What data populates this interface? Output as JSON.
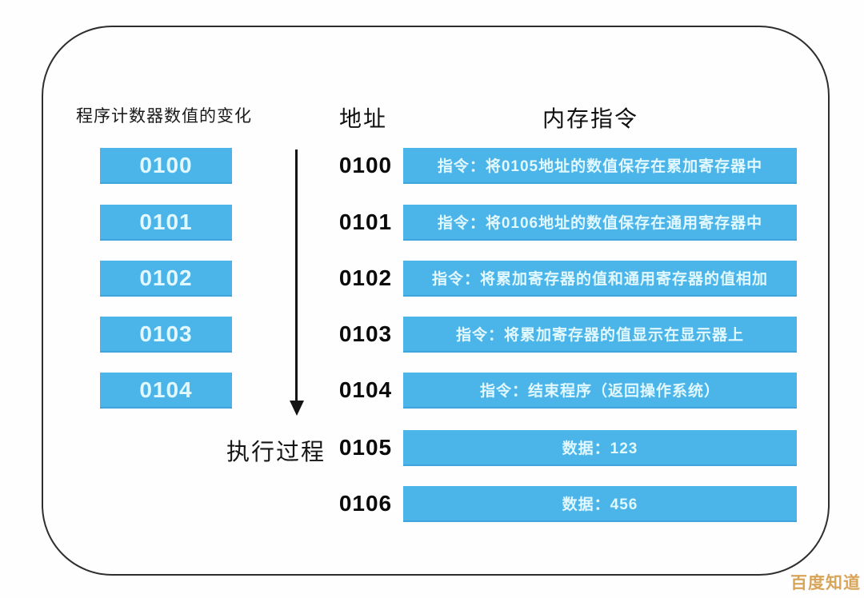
{
  "diagram": {
    "left_header": "程序计数器数值的变化",
    "address_header": "地址",
    "memory_header": "内存指令",
    "execution_label": "执行过程",
    "pc_boxes": [
      "0100",
      "0101",
      "0102",
      "0103",
      "0104"
    ],
    "memory_rows": [
      {
        "address": "0100",
        "content": "指令：将0105地址的数值保存在累加寄存器中"
      },
      {
        "address": "0101",
        "content": "指令：将0106地址的数值保存在通用寄存器中"
      },
      {
        "address": "0102",
        "content": "指令：将累加寄存器的值和通用寄存器的值相加"
      },
      {
        "address": "0103",
        "content": "指令：将累加寄存器的值显示在显示器上"
      },
      {
        "address": "0104",
        "content": "指令：结束程序（返回操作系统）"
      },
      {
        "address": "0105",
        "content": "数据：123"
      },
      {
        "address": "0106",
        "content": "数据：456"
      }
    ],
    "watermark": "百度知道",
    "colors": {
      "box_blue": "#4BB5E9",
      "box_text": "#E2F8FF",
      "frame_border": "#2E2E2E",
      "watermark_gold": "#D8A558"
    }
  }
}
